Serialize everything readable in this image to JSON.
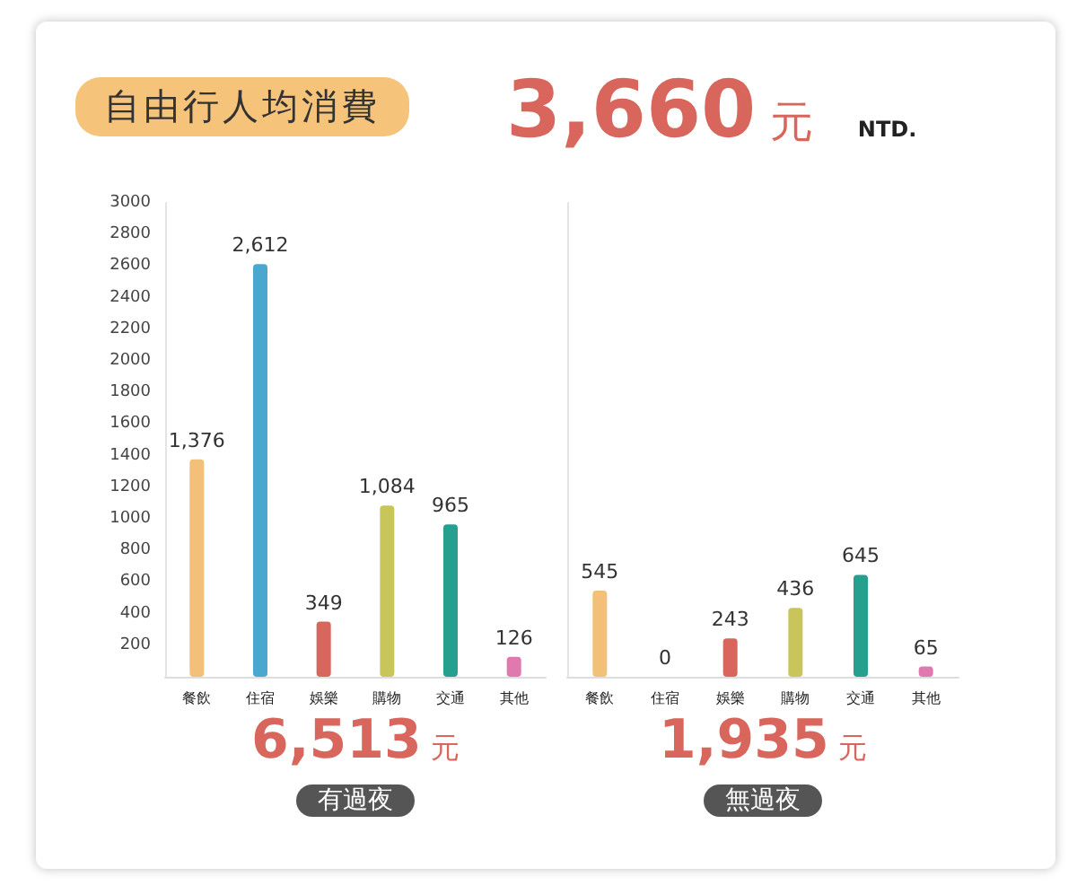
{
  "chart_data": [
    {
      "type": "other",
      "title": "自由行人均消費",
      "subtitle": "3,660 元 NTD."
    },
    {
      "type": "bar",
      "xlabel": "有過夜",
      "annotations": [
        "6,513 元"
      ],
      "categories": [
        "餐飲",
        "住宿",
        "娛樂",
        "購物",
        "交通",
        "其他"
      ],
      "values": [
        1376,
        2612,
        349,
        1084,
        965,
        126
      ],
      "value_labels": [
        "1,376",
        "2,612",
        "349",
        "1,084",
        "965",
        "126"
      ],
      "colors": [
        "#f2c078",
        "#4aa8cf",
        "#d9665c",
        "#c8c55a",
        "#26a08e",
        "#e07aae"
      ],
      "ylim": [
        0,
        3000
      ],
      "yticks": [
        200,
        400,
        600,
        800,
        1000,
        1200,
        1400,
        1600,
        1800,
        2000,
        2200,
        2400,
        2600,
        2800,
        3000
      ],
      "grid": false
    },
    {
      "type": "bar",
      "xlabel": "無過夜",
      "annotations": [
        "1,935 元"
      ],
      "categories": [
        "餐飲",
        "住宿",
        "娛樂",
        "購物",
        "交通",
        "其他"
      ],
      "values": [
        545,
        0,
        243,
        436,
        645,
        65
      ],
      "value_labels": [
        "545",
        "0",
        "243",
        "436",
        "645",
        "65"
      ],
      "colors": [
        "#f2c078",
        "#4aa8cf",
        "#d9665c",
        "#c8c55a",
        "#26a08e",
        "#e07aae"
      ],
      "ylim": [
        0,
        3000
      ],
      "yticks": [
        200,
        400,
        600,
        800,
        1000,
        1200,
        1400,
        1600,
        1800,
        2000,
        2200,
        2400,
        2600,
        2800,
        3000
      ],
      "grid": false,
      "tick_labels": "x"
    }
  ]
}
